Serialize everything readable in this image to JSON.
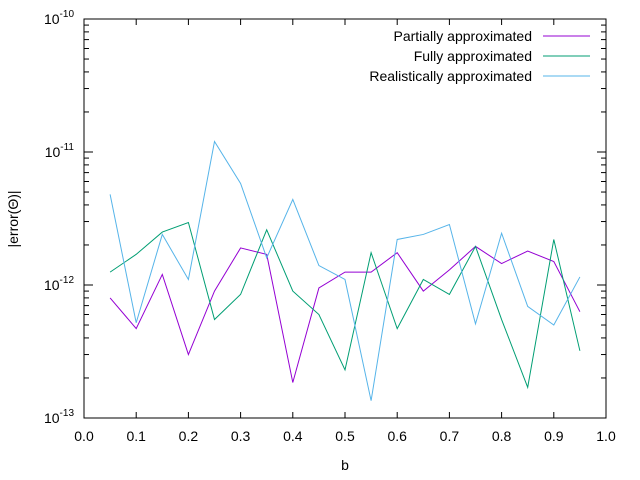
{
  "chart_data": {
    "type": "line",
    "title": "",
    "xlabel": "b",
    "ylabel": "|error(Θ)|",
    "xlim": [
      0.0,
      1.0
    ],
    "ylim": [
      1e-13,
      1e-10
    ],
    "yscale": "log",
    "grid": false,
    "legend_position": "top-right",
    "x_ticks": [
      "0.0",
      "0.1",
      "0.2",
      "0.3",
      "0.4",
      "0.5",
      "0.6",
      "0.7",
      "0.8",
      "0.9",
      "1.0"
    ],
    "y_ticks": [
      {
        "base": "10",
        "exp": "-13"
      },
      {
        "base": "10",
        "exp": "-12"
      },
      {
        "base": "10",
        "exp": "-11"
      },
      {
        "base": "10",
        "exp": "-10"
      }
    ],
    "x": [
      0.05,
      0.1,
      0.15,
      0.2,
      0.25,
      0.3,
      0.35,
      0.4,
      0.45,
      0.5,
      0.55,
      0.6,
      0.65,
      0.7,
      0.75,
      0.8,
      0.85,
      0.9,
      0.95
    ],
    "series": [
      {
        "name": "Partially approximated",
        "color": "#9400d3",
        "values": [
          8e-13,
          4.7e-13,
          1.2e-12,
          3e-13,
          9e-13,
          1.9e-12,
          1.7e-12,
          1.85e-13,
          9.5e-13,
          1.25e-12,
          1.25e-12,
          1.75e-12,
          9e-13,
          1.3e-12,
          1.95e-12,
          1.45e-12,
          1.8e-12,
          1.5e-12,
          6.3e-13
        ]
      },
      {
        "name": "Fully approximated",
        "color": "#009e73",
        "values": [
          1.25e-12,
          1.7e-12,
          2.5e-12,
          2.95e-12,
          5.5e-13,
          8.5e-13,
          2.6e-12,
          9e-13,
          6e-13,
          2.3e-13,
          1.75e-12,
          4.7e-13,
          1.1e-12,
          8.5e-13,
          1.95e-12,
          5.5e-13,
          1.7e-13,
          2.2e-12,
          3.2e-13
        ]
      },
      {
        "name": "Realistically approximated",
        "color": "#56b4e9",
        "values": [
          4.8e-12,
          5.2e-13,
          2.4e-12,
          1.1e-12,
          1.2e-11,
          5.8e-12,
          1.6e-12,
          4.4e-12,
          1.4e-12,
          1.1e-12,
          1.35e-13,
          2.2e-12,
          2.4e-12,
          2.85e-12,
          5.1e-13,
          2.45e-12,
          6.9e-13,
          5e-13,
          1.15e-12
        ]
      }
    ]
  }
}
